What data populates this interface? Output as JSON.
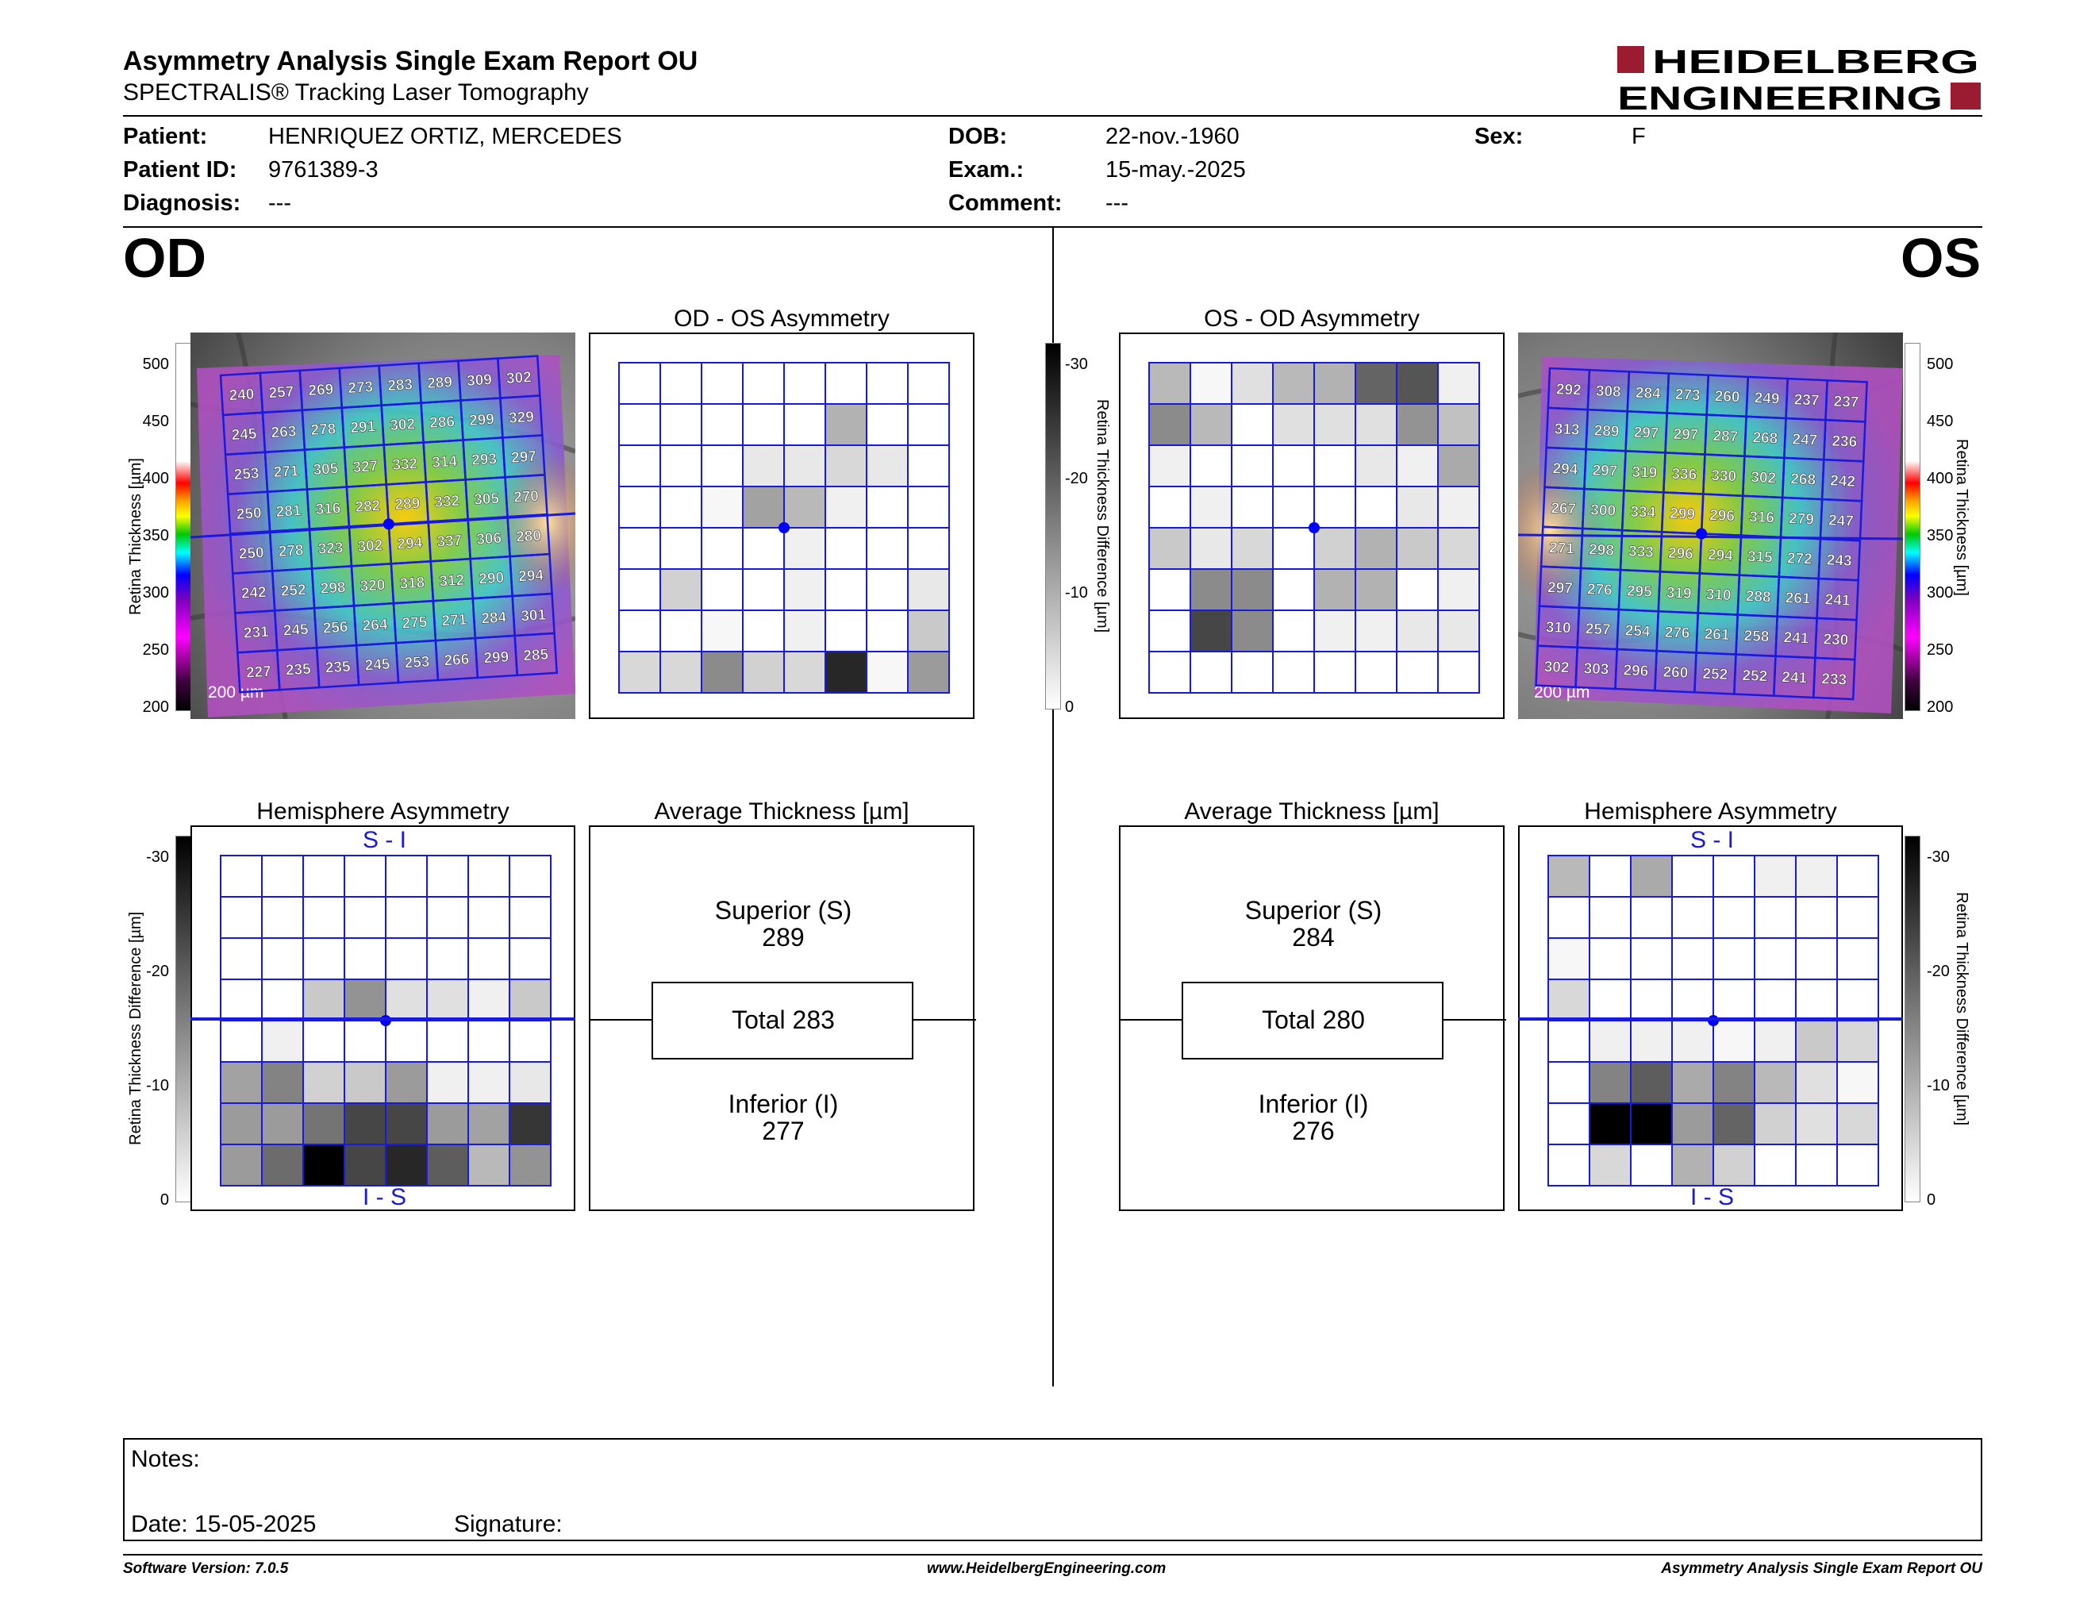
{
  "header": {
    "title": "Asymmetry Analysis Single Exam Report OU",
    "subtitle": "SPECTRALIS® Tracking Laser Tomography",
    "logo": {
      "line1": "HEIDELBERG",
      "line2": "ENGINEERING",
      "color": "#9b1b30"
    }
  },
  "patient": {
    "patient_label": "Patient:",
    "patient_value": "HENRIQUEZ ORTIZ, MERCEDES",
    "id_label": "Patient ID:",
    "id_value": "9761389-3",
    "diagnosis_label": "Diagnosis:",
    "diagnosis_value": "---",
    "dob_label": "DOB:",
    "dob_value": "22-nov.-1960",
    "exam_label": "Exam.:",
    "exam_value": "15-may.-2025",
    "comment_label": "Comment:",
    "comment_value": "---",
    "sex_label": "Sex:",
    "sex_value": "F"
  },
  "eyes": {
    "od": "OD",
    "os": "OS"
  },
  "titles": {
    "od_asym": "OD - OS Asymmetry",
    "os_asym": "OS - OD Asymmetry",
    "hemi": "Hemisphere Asymmetry",
    "avg": "Average Thickness [µm]"
  },
  "scales": {
    "thickness_label": "Retina  Thickness [µm]",
    "thickness_ticks": [
      "500",
      "450",
      "400",
      "350",
      "300",
      "250",
      "200"
    ],
    "diff_label": "Retina Thickness Difference [µm]",
    "diff_ticks": [
      "-30",
      "-20",
      "-10",
      "0"
    ],
    "scale_bar": "200 µm",
    "si": "S - I",
    "is": "I - S"
  },
  "od": {
    "thickness_grid": [
      [
        240,
        257,
        269,
        273,
        283,
        289,
        309,
        302
      ],
      [
        245,
        263,
        278,
        291,
        302,
        286,
        299,
        329
      ],
      [
        253,
        271,
        305,
        327,
        332,
        314,
        293,
        297
      ],
      [
        250,
        281,
        316,
        282,
        289,
        332,
        305,
        270
      ],
      [
        250,
        278,
        323,
        302,
        294,
        337,
        306,
        280
      ],
      [
        242,
        252,
        298,
        320,
        318,
        312,
        290,
        294
      ],
      [
        231,
        245,
        256,
        264,
        275,
        271,
        284,
        301
      ],
      [
        227,
        235,
        235,
        245,
        253,
        266,
        299,
        285
      ]
    ],
    "asym_grid": [
      [
        0,
        0,
        0,
        0,
        0,
        0,
        0,
        0
      ],
      [
        0,
        0,
        0,
        0,
        0,
        10,
        0,
        0
      ],
      [
        0,
        0,
        0,
        3,
        3,
        5,
        3,
        0
      ],
      [
        0,
        0,
        1,
        12,
        9,
        2,
        0,
        0
      ],
      [
        0,
        0,
        0,
        0,
        2,
        0,
        0,
        0
      ],
      [
        0,
        6,
        0,
        0,
        2,
        0,
        0,
        3
      ],
      [
        0,
        0,
        1,
        0,
        2,
        0,
        0,
        7
      ],
      [
        5,
        5,
        15,
        6,
        5,
        28,
        1,
        13
      ]
    ],
    "hemi_grid": [
      [
        0,
        0,
        0,
        0,
        0,
        0,
        0,
        0
      ],
      [
        0,
        0,
        0,
        0,
        0,
        0,
        0,
        0
      ],
      [
        0,
        0,
        0,
        0,
        0,
        0,
        0,
        0
      ],
      [
        0,
        0,
        7,
        14,
        4,
        4,
        2,
        7
      ],
      [
        0,
        2,
        0,
        0,
        0,
        0,
        0,
        0
      ],
      [
        12,
        16,
        6,
        7,
        13,
        2,
        2,
        3
      ],
      [
        13,
        13,
        18,
        24,
        24,
        13,
        12,
        26
      ],
      [
        13,
        19,
        33,
        24,
        28,
        21,
        9,
        14
      ]
    ],
    "avg": {
      "sup_label": "Superior (S)",
      "sup": "289",
      "total": "Total 283",
      "inf_label": "Inferior (I)",
      "inf": "277"
    }
  },
  "os": {
    "thickness_grid": [
      [
        292,
        308,
        284,
        273,
        260,
        249,
        237,
        237
      ],
      [
        313,
        289,
        297,
        297,
        287,
        268,
        247,
        236
      ],
      [
        294,
        297,
        319,
        336,
        330,
        302,
        268,
        242
      ],
      [
        267,
        300,
        334,
        299,
        296,
        316,
        279,
        247
      ],
      [
        271,
        298,
        333,
        296,
        294,
        315,
        272,
        243
      ],
      [
        297,
        276,
        295,
        319,
        310,
        288,
        261,
        241
      ],
      [
        310,
        257,
        254,
        276,
        261,
        258,
        241,
        230
      ],
      [
        302,
        303,
        296,
        260,
        252,
        252,
        241,
        233
      ]
    ],
    "asym_grid": [
      [
        9,
        1,
        4,
        9,
        10,
        20,
        22,
        2
      ],
      [
        15,
        9,
        0,
        4,
        4,
        4,
        14,
        8
      ],
      [
        2,
        0,
        0,
        0,
        0,
        3,
        2,
        11
      ],
      [
        0,
        2,
        0,
        0,
        0,
        0,
        3,
        2
      ],
      [
        7,
        3,
        5,
        0,
        6,
        10,
        7,
        5
      ],
      [
        0,
        15,
        15,
        0,
        10,
        10,
        0,
        2
      ],
      [
        0,
        24,
        15,
        0,
        2,
        2,
        3,
        3
      ],
      [
        0,
        0,
        0,
        0,
        0,
        0,
        0,
        0
      ]
    ],
    "hemi_grid": [
      [
        9,
        0,
        11,
        0,
        0,
        2,
        2,
        0
      ],
      [
        0,
        0,
        0,
        0,
        0,
        0,
        0,
        0
      ],
      [
        1,
        0,
        0,
        0,
        0,
        0,
        0,
        0
      ],
      [
        5,
        0,
        0,
        0,
        0,
        0,
        0,
        0
      ],
      [
        0,
        2,
        2,
        2,
        1,
        2,
        7,
        5
      ],
      [
        0,
        16,
        21,
        11,
        16,
        9,
        4,
        1
      ],
      [
        0,
        33,
        33,
        13,
        20,
        6,
        4,
        5
      ],
      [
        0,
        5,
        0,
        10,
        6,
        0,
        0,
        0
      ]
    ],
    "avg": {
      "sup_label": "Superior (S)",
      "sup": "284",
      "total": "Total 280",
      "inf_label": "Inferior (I)",
      "inf": "276"
    }
  },
  "notes": {
    "notes_label": "Notes:",
    "date_label": "Date: 15-05-2025",
    "signature_label": "Signature:"
  },
  "footer": {
    "version": "Software Version: 7.0.5",
    "website": "www.HeidelbergEngineering.com",
    "report": "Asymmetry Analysis Single Exam Report OU"
  },
  "colors": {
    "grid_line": "#1a1adc",
    "marker": "#0000ff",
    "label_blue": "#1a1adc"
  }
}
